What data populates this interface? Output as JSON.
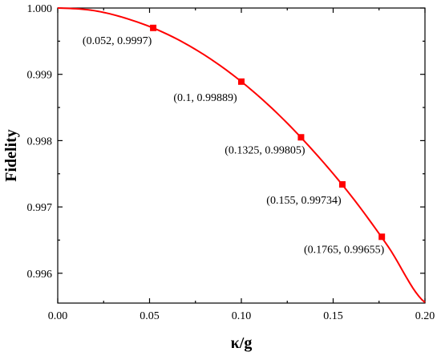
{
  "chart_data": {
    "type": "line",
    "title": "",
    "xlabel": "κ/g",
    "ylabel": "Fidelity",
    "xlim": [
      0.0,
      0.2
    ],
    "ylim": [
      0.99555,
      1.0
    ],
    "grid": false,
    "x_ticks": [
      "0.00",
      "0.05",
      "0.10",
      "0.15",
      "0.20"
    ],
    "y_ticks": [
      "0.996",
      "0.997",
      "0.998",
      "0.999",
      "1.000"
    ],
    "series": [
      {
        "color": "#ff0000",
        "curve": {
          "x": [
            0.0,
            0.02,
            0.04,
            0.06,
            0.08,
            0.1,
            0.12,
            0.14,
            0.16,
            0.18,
            0.2
          ],
          "y": [
            1.0,
            0.99996,
            0.99982,
            0.9996,
            0.99929,
            0.99889,
            0.9984,
            0.99782,
            0.99716,
            0.9964,
            0.99556
          ]
        },
        "markers": [
          {
            "x": 0.052,
            "y": 0.9997,
            "label": "(0.052, 0.9997)"
          },
          {
            "x": 0.1,
            "y": 0.99889,
            "label": "(0.1, 0.99889)"
          },
          {
            "x": 0.1325,
            "y": 0.99805,
            "label": "(0.1325, 0.99805)"
          },
          {
            "x": 0.155,
            "y": 0.99734,
            "label": "(0.155, 0.99734)"
          },
          {
            "x": 0.1765,
            "y": 0.99655,
            "label": "(0.1765, 0.99655)"
          }
        ]
      }
    ]
  }
}
